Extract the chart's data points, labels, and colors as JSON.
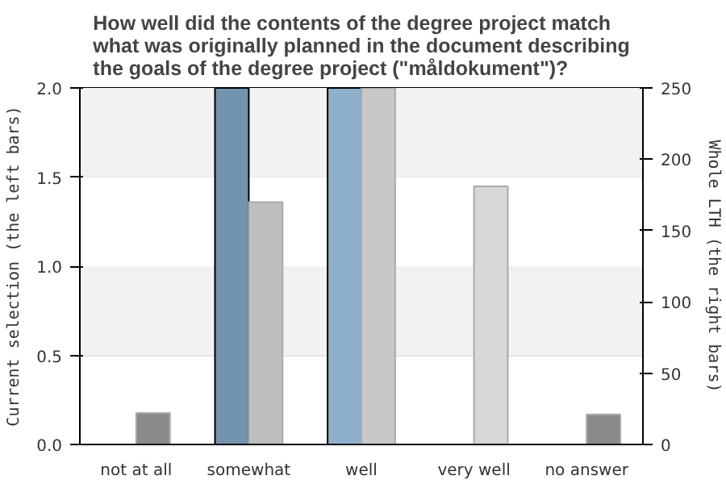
{
  "chart_data": {
    "type": "bar",
    "title": "How well did the contents of the degree project match\nwhat was originally planned in the document describing\nthe goals of the degree project (\"måldokument\")?",
    "ylabel": "Current selection (the left bars)",
    "y2label": "Whole LTH (the right bars)",
    "categories": [
      "not at all",
      "somewhat",
      "well",
      "very well",
      "no answer"
    ],
    "series": [
      {
        "colors": [
          "#7394b0",
          "#7394b0",
          "#8fb0cc",
          "#8fb0cc",
          "#8fb0cc"
        ],
        "values": [
          null,
          2,
          2,
          null,
          null
        ]
      },
      {
        "axis": "y2",
        "colors": [
          "#8a8a8a",
          "#bebebe",
          "#c8c8c8",
          "#d8d8d8",
          "#8a8a8a"
        ],
        "values": [
          22,
          170,
          250,
          181,
          21
        ]
      }
    ],
    "ylim": [
      0,
      2
    ],
    "yticks": [
      {
        "value": 0,
        "label": "0.0"
      },
      {
        "value": 0.5,
        "label": "0.5"
      },
      {
        "value": 1,
        "label": "1.0"
      },
      {
        "value": 1.5,
        "label": "1.5"
      },
      {
        "value": 2,
        "label": "2.0"
      }
    ],
    "bands": [
      {
        "axis": "y",
        "from": 0.5,
        "to": 1,
        "color": "#f2f2f2"
      },
      {
        "axis": "y",
        "from": 1.5,
        "to": 2,
        "color": "#f2f2f2"
      }
    ],
    "y2lim": [
      0,
      250
    ],
    "y2ticks": [
      0,
      50,
      100,
      150,
      200,
      250
    ],
    "grid": "y"
  }
}
